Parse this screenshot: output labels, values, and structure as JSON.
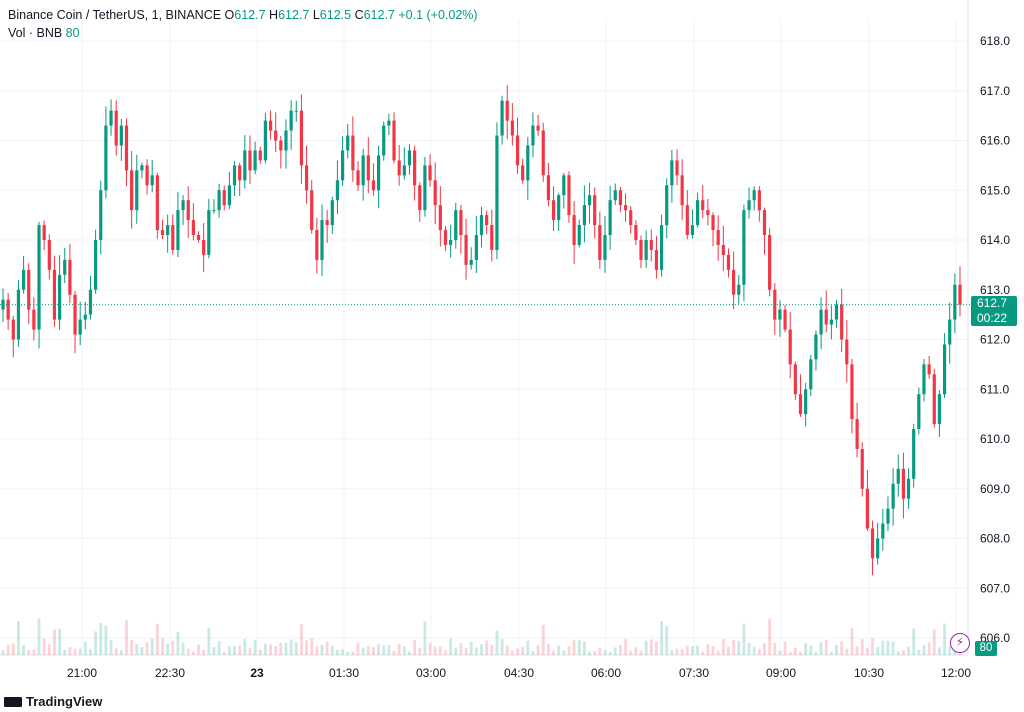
{
  "legend": {
    "symbol": "Binance Coin / TetherUS, 1, BINANCE",
    "o_label": "O",
    "o_value": "612.7",
    "h_label": "H",
    "h_value": "612.7",
    "l_label": "L",
    "l_value": "612.5",
    "c_label": "C",
    "c_value": "612.7",
    "change": "+0.1 (+0.02%)",
    "vol_label": "Vol · BNB",
    "vol_value": "80"
  },
  "price_tag": {
    "price": "612.7",
    "timer": "00:22"
  },
  "vol_tag": "80",
  "branding": "TradingView",
  "colors": {
    "up": "#089981",
    "down": "#f23645",
    "grid": "#f0f3fa",
    "text": "#131722"
  },
  "chart_data": {
    "type": "candlestick",
    "y_axis": {
      "min": 606.0,
      "max": 618.0,
      "ticks": [
        "618.0",
        "617.0",
        "616.0",
        "615.0",
        "614.0",
        "613.0",
        "612.0",
        "611.0",
        "610.0",
        "609.0",
        "608.0",
        "607.0",
        "606.0"
      ],
      "position": "right"
    },
    "x_axis": {
      "ticks": [
        "21:00",
        "22:30",
        "23",
        "01:30",
        "03:00",
        "04:30",
        "06:00",
        "07:30",
        "09:00",
        "10:30",
        "12:00"
      ],
      "bold_tick": "23"
    },
    "last_price": 612.7,
    "volume": {
      "last": 80
    },
    "series": [
      {
        "values": [
          612.8,
          612.4,
          612.0,
          613.0,
          613.4,
          612.6,
          612.2,
          614.3,
          614.0,
          613.4,
          612.4,
          613.3,
          613.6,
          612.9,
          612.1,
          612.4,
          612.5,
          613.0,
          614.0,
          615.0,
          616.3,
          616.6,
          615.9,
          616.3,
          615.4,
          614.6,
          615.4,
          615.5,
          615.1,
          615.3,
          614.2,
          614.1,
          614.3,
          613.8,
          614.6,
          614.8,
          614.4,
          614.1,
          614.0,
          613.7,
          614.6,
          614.6,
          615.0,
          614.7,
          615.1,
          615.5,
          615.2,
          615.8,
          615.4,
          615.8,
          615.6,
          616.4,
          616.2,
          616.0,
          615.8,
          616.2,
          616.6,
          616.6,
          615.5,
          615.0,
          614.2,
          613.6,
          614.4,
          614.3,
          614.8,
          615.2,
          615.8,
          616.1,
          615.4,
          615.1,
          615.7,
          615.2,
          615.0,
          615.7,
          616.3,
          616.4,
          615.6,
          615.3,
          615.5,
          615.8,
          615.1,
          614.6,
          615.5,
          615.2,
          614.7,
          614.2,
          613.9,
          614.0,
          614.6,
          614.1,
          613.5,
          613.6,
          614.1,
          614.5,
          614.3,
          613.8,
          616.1,
          616.8,
          616.4,
          616.1,
          615.5,
          615.2,
          615.9,
          616.3,
          616.2,
          615.3,
          614.8,
          614.4,
          614.9,
          615.3,
          614.5,
          613.9,
          614.3,
          614.7,
          614.9,
          614.3,
          613.6,
          614.1,
          614.8,
          615.0,
          614.7,
          614.6,
          614.3,
          614.0,
          613.6,
          614.0,
          613.8,
          613.4,
          614.3,
          615.1,
          615.6,
          615.3,
          614.7,
          614.1,
          614.3,
          614.8,
          614.6,
          614.5,
          614.2,
          613.9,
          613.7,
          613.4,
          612.9,
          613.1,
          614.6,
          614.8,
          615.0,
          614.6,
          614.1,
          613.0,
          612.4,
          612.6,
          612.2,
          611.5,
          610.9,
          610.5,
          611.0,
          611.6,
          612.1,
          612.6,
          612.3,
          612.4,
          612.7,
          612.0,
          611.5,
          610.4,
          609.8,
          609.0,
          608.2,
          607.6,
          608.0,
          608.3,
          608.6,
          609.1,
          609.4,
          608.8,
          609.2,
          610.2,
          610.9,
          611.5,
          611.3,
          610.3,
          610.9,
          611.9,
          612.4,
          613.1,
          612.7
        ]
      }
    ]
  }
}
